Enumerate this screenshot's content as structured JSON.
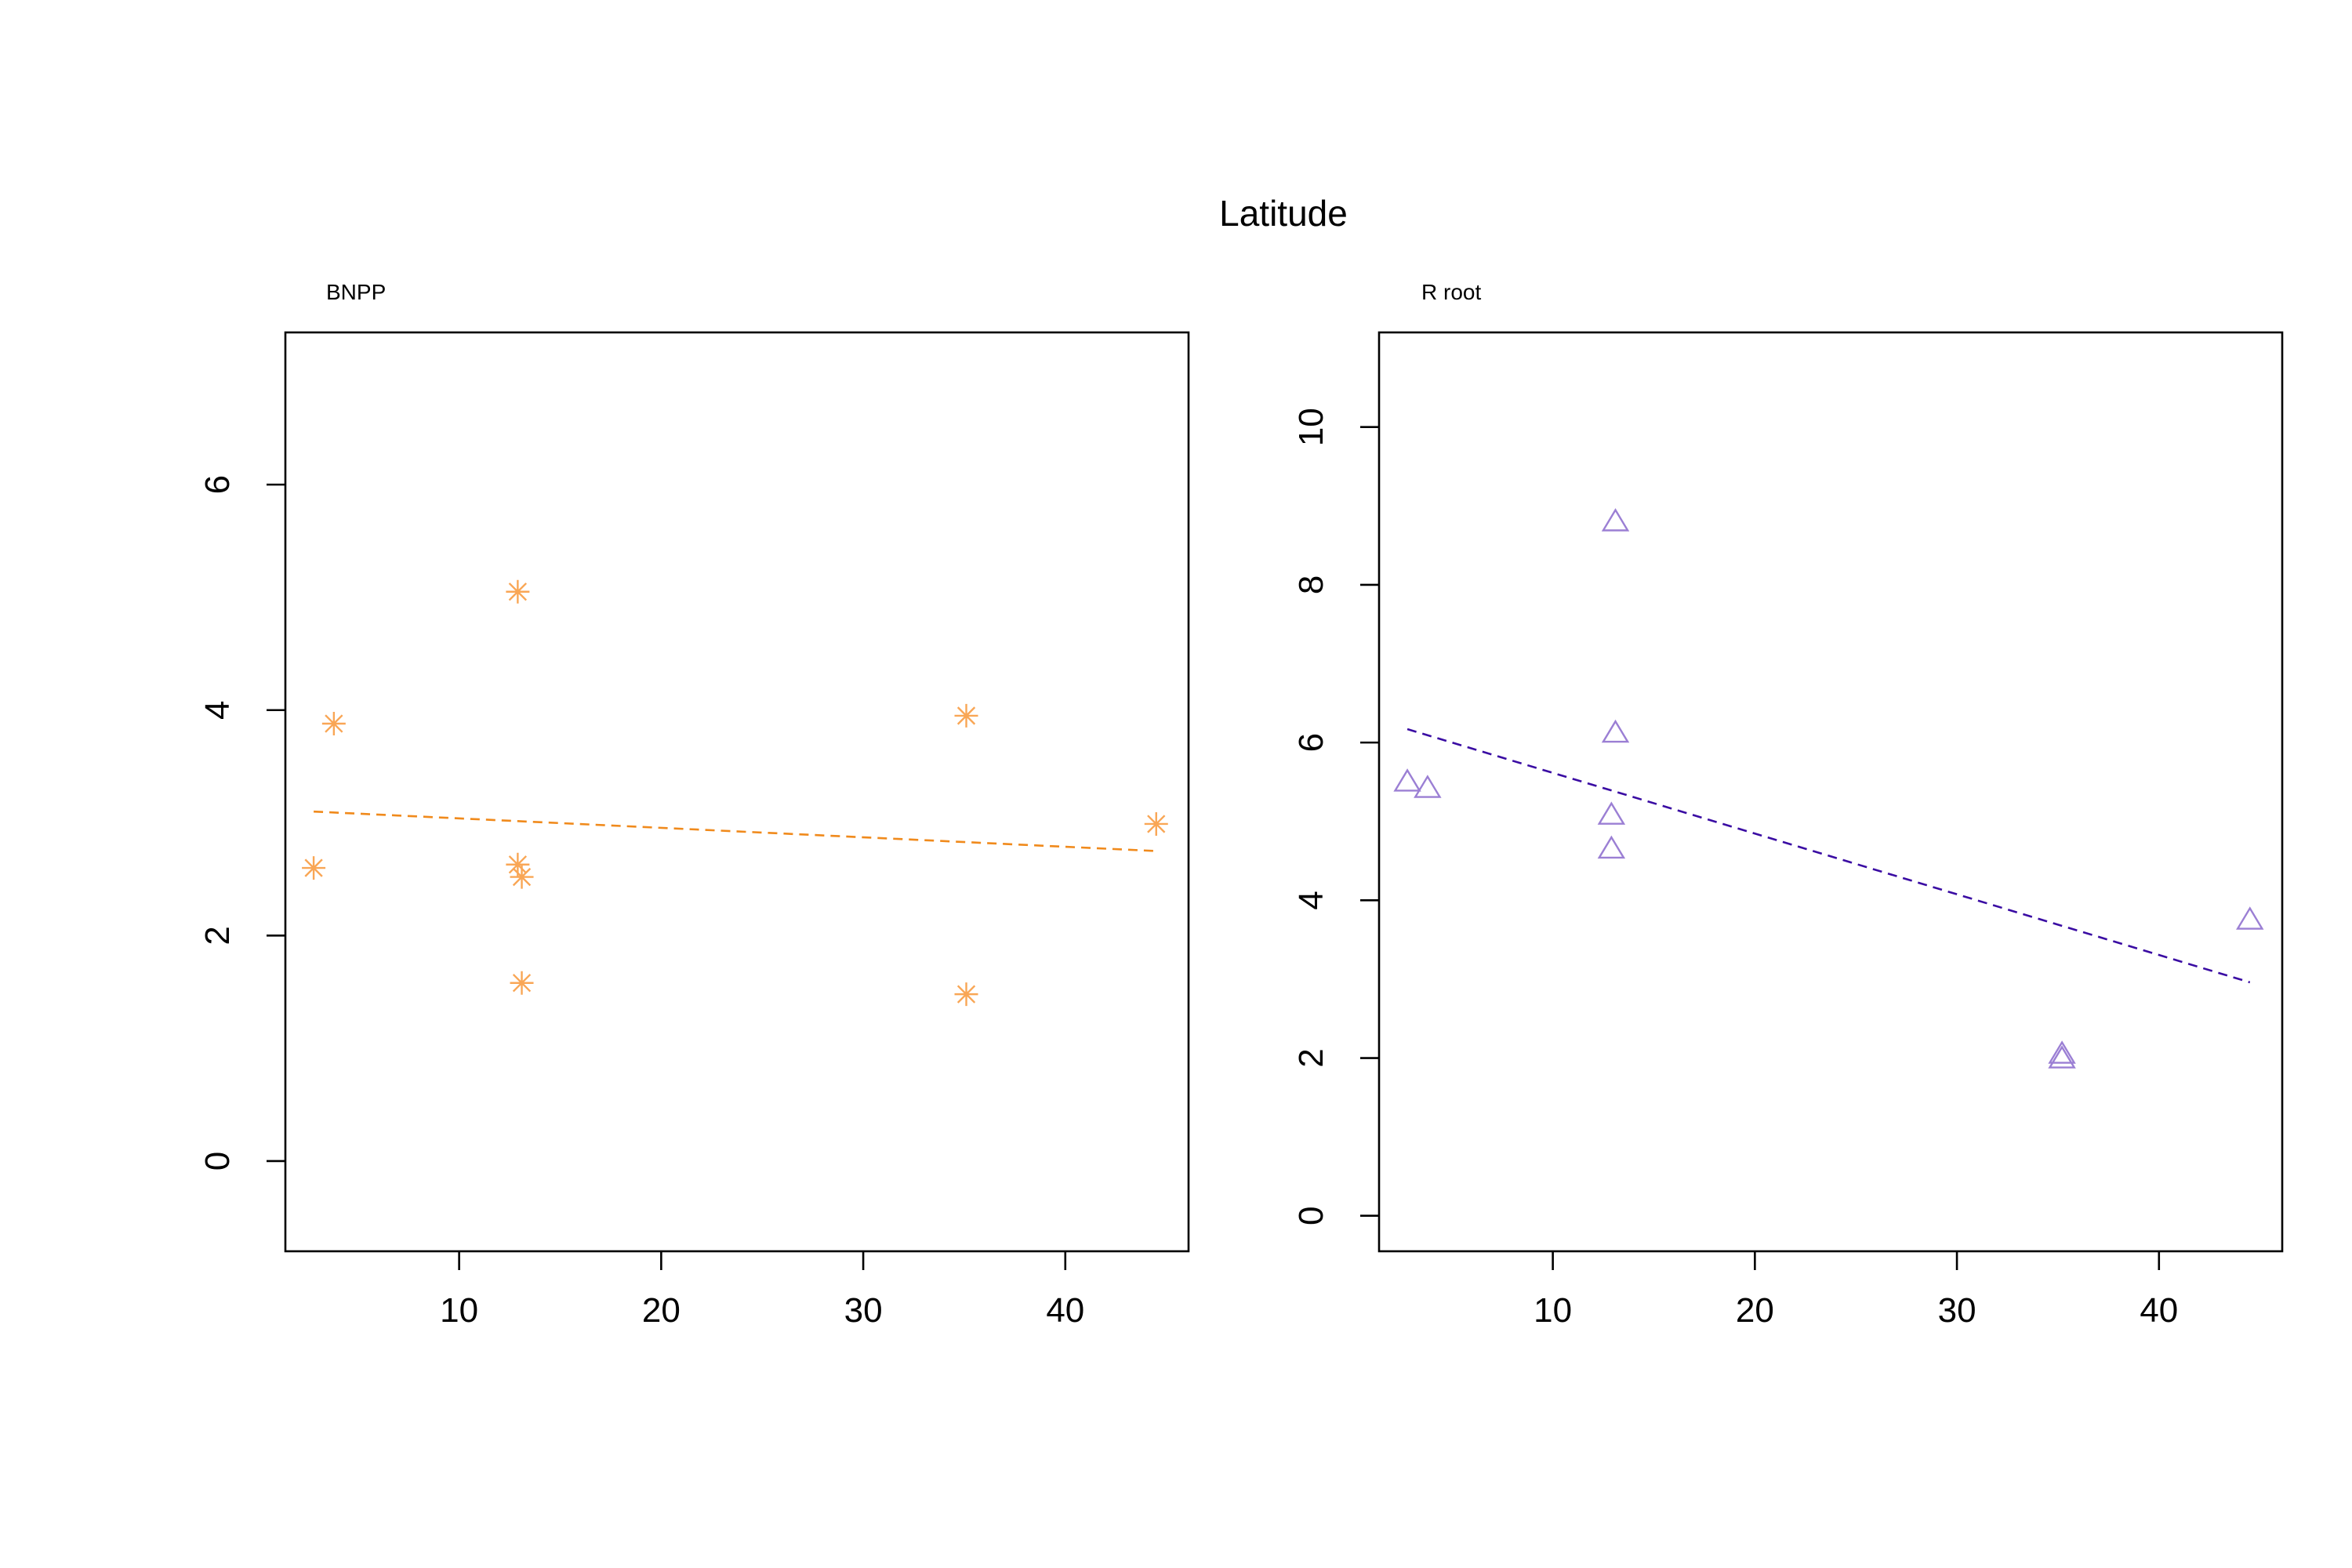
{
  "figure_title": "Latitude",
  "chart_data": [
    {
      "type": "scatter",
      "title": "BNPP",
      "xlabel": "",
      "ylabel": "",
      "xlim": [
        1.4,
        46.1
      ],
      "ylim": [
        -0.8,
        7.35
      ],
      "xticks": [
        10,
        20,
        30,
        40
      ],
      "yticks": [
        0,
        2,
        4,
        6
      ],
      "grid": false,
      "color": "#f9a655",
      "line_color": "#f08a1c",
      "marker": "asterisk",
      "points": [
        {
          "x": 2.8,
          "y": 2.6
        },
        {
          "x": 3.8,
          "y": 3.88
        },
        {
          "x": 12.9,
          "y": 5.05
        },
        {
          "x": 12.9,
          "y": 2.63
        },
        {
          "x": 13.1,
          "y": 2.52
        },
        {
          "x": 13.1,
          "y": 1.58
        },
        {
          "x": 35.1,
          "y": 3.95
        },
        {
          "x": 35.1,
          "y": 1.48
        },
        {
          "x": 44.5,
          "y": 2.99
        }
      ],
      "fit_line": {
        "x": [
          2.8,
          44.5
        ],
        "y": [
          3.1,
          2.75
        ]
      }
    },
    {
      "type": "scatter",
      "title": "R root",
      "xlabel": "",
      "ylabel": "",
      "xlim": [
        1.4,
        46.1
      ],
      "ylim": [
        -0.45,
        11.2
      ],
      "xticks": [
        10,
        20,
        30,
        40
      ],
      "yticks": [
        0,
        2,
        4,
        6,
        8,
        10
      ],
      "grid": false,
      "color": "#9b7fd4",
      "line_color": "#3a0ca3",
      "marker": "triangle",
      "points": [
        {
          "x": 2.8,
          "y": 5.5
        },
        {
          "x": 3.8,
          "y": 5.42
        },
        {
          "x": 13.1,
          "y": 8.8
        },
        {
          "x": 13.1,
          "y": 6.12
        },
        {
          "x": 12.9,
          "y": 5.08
        },
        {
          "x": 12.9,
          "y": 4.65
        },
        {
          "x": 35.2,
          "y": 2.05
        },
        {
          "x": 35.2,
          "y": 1.99
        },
        {
          "x": 44.5,
          "y": 3.75
        }
      ],
      "fit_line": {
        "x": [
          2.8,
          44.5
        ],
        "y": [
          6.17,
          2.96
        ]
      }
    }
  ]
}
